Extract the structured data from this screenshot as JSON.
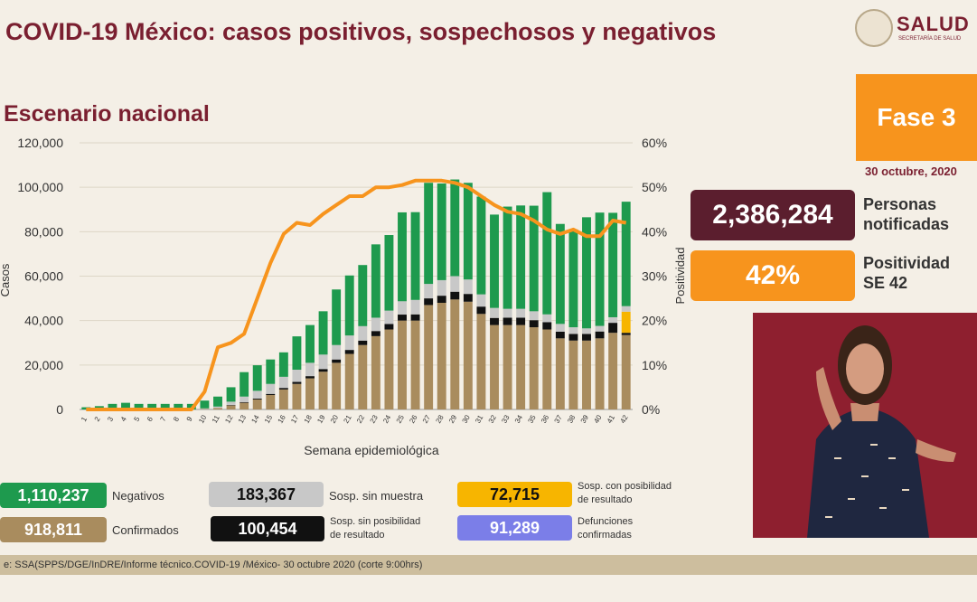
{
  "header": {
    "title": "COVID-19 México: casos positivos, sospechosos y negativos",
    "logo_text": "SALUD",
    "logo_sub": "SECRETARÍA DE SALUD"
  },
  "subtitle": "Escenario nacional",
  "fase": "Fase 3",
  "date": "30 octubre, 2020",
  "notificadas": {
    "value": "2,386,284",
    "label_line1": "Personas",
    "label_line2": "notificadas"
  },
  "positividad": {
    "value": "42%",
    "label_line1": "Positividad",
    "label_line2": "SE 42"
  },
  "legend": {
    "negativos": {
      "value": "1,110,237",
      "label": "Negativos",
      "color": "#1e9a4e"
    },
    "sin_muestra": {
      "value": "183,367",
      "label": "Sosp. sin muestra",
      "color": "#c8c8c8"
    },
    "con_posibilidad": {
      "value": "72,715",
      "label_line1": "Sosp. con posibilidad",
      "label_line2": "de resultado",
      "color": "#f7b500"
    },
    "confirmados": {
      "value": "918,811",
      "label": "Confirmados",
      "color": "#a98c5e"
    },
    "sin_posibilidad": {
      "value": "100,454",
      "label_line1": "Sosp. sin posibilidad",
      "label_line2": "de resultado",
      "color": "#111111"
    },
    "defunciones": {
      "value": "91,289",
      "label_line1": "Defunciones",
      "label_line2": "confirmadas",
      "color": "#7b7ee8"
    }
  },
  "source": "e: SSA(SPPS/DGE/InDRE/Informe técnico.COVID-19 /México- 30 octubre 2020 (corte 9:00hrs)",
  "chart_data": {
    "type": "bar",
    "xlabel": "Semana epidemiológica",
    "ylabel": "Casos",
    "y2label": "Positividad",
    "ylim": [
      0,
      120000
    ],
    "y2lim": [
      0,
      60
    ],
    "yticks": [
      "0",
      "20,000",
      "40,000",
      "60,000",
      "80,000",
      "100,000",
      "120,000"
    ],
    "y2ticks": [
      "0%",
      "10%",
      "20%",
      "30%",
      "40%",
      "50%",
      "60%"
    ],
    "categories": [
      "1",
      "2",
      "3",
      "4",
      "5",
      "6",
      "7",
      "8",
      "9",
      "10",
      "11",
      "12",
      "13",
      "14",
      "15",
      "16",
      "17",
      "18",
      "19",
      "20",
      "21",
      "22",
      "23",
      "24",
      "25",
      "26",
      "27",
      "28",
      "29",
      "30",
      "31",
      "32",
      "33",
      "34",
      "35",
      "36",
      "37",
      "38",
      "39",
      "40",
      "41",
      "42"
    ],
    "stacked": true,
    "series": [
      {
        "name": "Confirmados",
        "color": "#a98c5e",
        "values": [
          0,
          0,
          0,
          0,
          0,
          0,
          0,
          0,
          0,
          200,
          700,
          1800,
          3000,
          4500,
          6500,
          9000,
          11500,
          14000,
          17000,
          21000,
          25000,
          29000,
          33000,
          36000,
          40000,
          40000,
          47000,
          48000,
          49500,
          48500,
          43000,
          38000,
          38000,
          38000,
          37000,
          36000,
          32000,
          31000,
          31000,
          32000,
          34500,
          33500
        ]
      },
      {
        "name": "Sosp. sin posibilidad de resultado",
        "color": "#111111",
        "values": [
          0,
          0,
          0,
          0,
          0,
          0,
          0,
          0,
          0,
          0,
          0,
          200,
          300,
          400,
          500,
          700,
          900,
          1000,
          1200,
          1500,
          1800,
          2000,
          2300,
          2500,
          2700,
          2800,
          3000,
          3200,
          3500,
          3500,
          3300,
          3200,
          3300,
          3300,
          3200,
          3300,
          3000,
          3000,
          3000,
          3100,
          4500,
          1000
        ]
      },
      {
        "name": "Sosp. con posibilidad de resultado",
        "color": "#f7b500",
        "values": [
          0,
          0,
          0,
          0,
          0,
          0,
          0,
          0,
          0,
          0,
          0,
          0,
          0,
          0,
          0,
          0,
          0,
          0,
          0,
          0,
          0,
          0,
          0,
          0,
          0,
          0,
          0,
          0,
          0,
          0,
          0,
          0,
          0,
          0,
          0,
          0,
          0,
          0,
          0,
          0,
          0,
          9500
        ]
      },
      {
        "name": "Sosp. sin muestra",
        "color": "#c8c8c8",
        "values": [
          0,
          0,
          0,
          0,
          0,
          0,
          0,
          0,
          0,
          300,
          600,
          1500,
          2500,
          3500,
          4500,
          5000,
          5500,
          6000,
          6500,
          6500,
          6500,
          6500,
          6000,
          6000,
          6000,
          6500,
          6500,
          7000,
          7000,
          6500,
          5500,
          4500,
          4000,
          4000,
          4000,
          3500,
          3500,
          3000,
          2500,
          2500,
          2500,
          2500
        ]
      },
      {
        "name": "Negativos",
        "color": "#1e9a4e",
        "values": [
          1000,
          1500,
          2500,
          3000,
          2500,
          2500,
          2500,
          2500,
          2500,
          3500,
          4500,
          6500,
          11000,
          11500,
          11000,
          11000,
          15000,
          17000,
          19500,
          25000,
          27000,
          27500,
          33000,
          34000,
          40000,
          39500,
          45500,
          43500,
          43500,
          43500,
          44000,
          42000,
          46000,
          46500,
          47500,
          55000,
          45000,
          44000,
          50000,
          51000,
          47000,
          47000
        ]
      },
      {
        "name": "Positividad",
        "type": "line",
        "color": "#f7941d",
        "axis": "y2",
        "values": [
          0,
          0,
          0,
          0,
          0,
          0,
          0,
          0,
          0,
          4,
          14,
          15,
          17,
          25,
          33,
          39.5,
          42,
          41.5,
          44,
          46,
          48,
          48,
          50,
          50,
          50.5,
          51.5,
          51.5,
          51.5,
          51,
          50,
          48,
          46,
          44.5,
          44,
          42.5,
          40.5,
          39.5,
          40.5,
          39,
          39,
          42.5,
          42
        ]
      }
    ]
  }
}
